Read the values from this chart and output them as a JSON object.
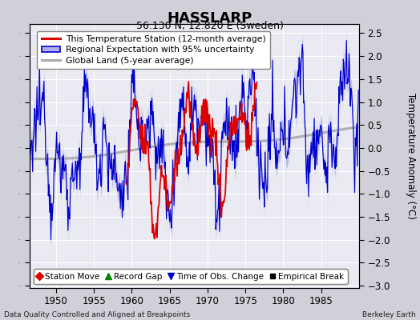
{
  "title": "HASSLARP",
  "subtitle": "56.130 N, 12.820 E (Sweden)",
  "ylabel": "Temperature Anomaly (°C)",
  "xlim": [
    1946.5,
    1990.0
  ],
  "ylim": [
    -3.05,
    2.7
  ],
  "yticks": [
    -3,
    -2.5,
    -2,
    -1.5,
    -1,
    -0.5,
    0,
    0.5,
    1,
    1.5,
    2,
    2.5
  ],
  "xticks": [
    1950,
    1955,
    1960,
    1965,
    1970,
    1975,
    1980,
    1985
  ],
  "footer_left": "Data Quality Controlled and Aligned at Breakpoints",
  "footer_right": "Berkeley Earth",
  "legend_line1": "This Temperature Station (12-month average)",
  "legend_line2": "Regional Expectation with 95% uncertainty",
  "legend_line3": "Global Land (5-year average)",
  "legend_marker1": "Station Move",
  "legend_marker2": "Record Gap",
  "legend_marker3": "Time of Obs. Change",
  "legend_marker4": "Empirical Break",
  "red_color": "#dd0000",
  "blue_color": "#0000cc",
  "blue_fill_color": "#b0b0ee",
  "gray_color": "#aaaaaa",
  "plot_bg": "#eaeaf2",
  "fig_bg": "#d0d0d8",
  "grid_color": "#ffffff"
}
